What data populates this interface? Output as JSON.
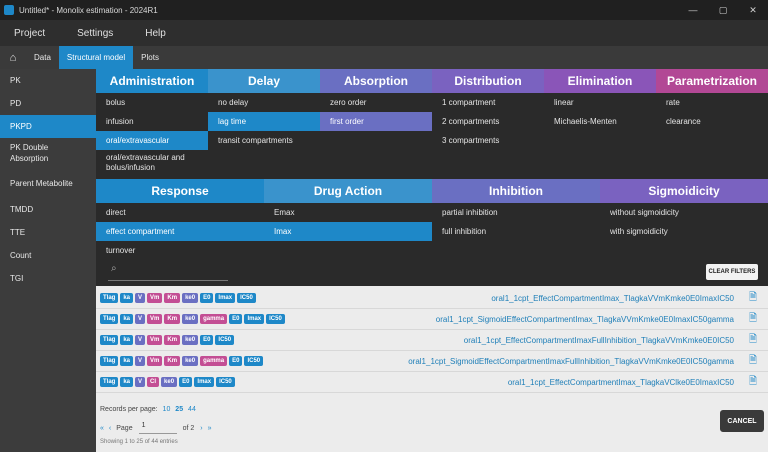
{
  "window": {
    "title": "Untitled* - Monolix estimation - 2024R1",
    "controls": [
      "—",
      "▢",
      "✕"
    ]
  },
  "menu": [
    "Project",
    "Settings",
    "Help"
  ],
  "tabs": [
    {
      "label": "Data",
      "active": false
    },
    {
      "label": "Structural model",
      "active": true
    },
    {
      "label": "Plots",
      "active": false
    }
  ],
  "sidebar": [
    {
      "label": "PK",
      "active": false
    },
    {
      "label": "PD",
      "active": false
    },
    {
      "label": "PKPD",
      "active": true
    },
    {
      "label": "PK Double Absorption",
      "active": false
    },
    {
      "label": "Parent Metabolite",
      "active": false
    },
    {
      "label": "TMDD",
      "active": false
    },
    {
      "label": "TTE",
      "active": false
    },
    {
      "label": "Count",
      "active": false
    },
    {
      "label": "TGI",
      "active": false
    }
  ],
  "pk_categories": [
    {
      "title": "Administration",
      "color": "#1e88c8",
      "options": [
        "bolus",
        "infusion",
        "oral/extravascular",
        "oral/extravascular and bolus/infusion"
      ],
      "selected": 2
    },
    {
      "title": "Delay",
      "color": "#3a93cc",
      "options": [
        "no delay",
        "lag time",
        "transit compartments"
      ],
      "selected": 1
    },
    {
      "title": "Absorption",
      "color": "#6a6fc2",
      "options": [
        "zero order",
        "first order"
      ],
      "selected": 1
    },
    {
      "title": "Distribution",
      "color": "#7a62c0",
      "options": [
        "1 compartment",
        "2 compartments",
        "3 compartments"
      ],
      "selected": -1
    },
    {
      "title": "Elimination",
      "color": "#8a55b8",
      "options": [
        "linear",
        "Michaelis-Menten"
      ],
      "selected": -1
    },
    {
      "title": "Parametrization",
      "color": "#b24895",
      "options": [
        "rate",
        "clearance"
      ],
      "selected": -1
    }
  ],
  "pd_categories": [
    {
      "title": "Response",
      "color": "#1e88c8",
      "options": [
        "direct",
        "effect compartment",
        "turnover"
      ],
      "selected": 1
    },
    {
      "title": "Drug Action",
      "color": "#3a93cc",
      "options": [
        "Emax",
        "Imax"
      ],
      "selected": 1
    },
    {
      "title": "Inhibition",
      "color": "#6a6fc2",
      "options": [
        "partial inhibition",
        "full inhibition"
      ],
      "selected": -1
    },
    {
      "title": "Sigmoidicity",
      "color": "#7a62c0",
      "options": [
        "without sigmoidicity",
        "with sigmoidicity"
      ],
      "selected": -1
    }
  ],
  "filter": {
    "clear_label": "CLEAR FILTERS"
  },
  "results": [
    {
      "tags": [
        "Tlag",
        "ka",
        "V",
        "Vm",
        "Km",
        "ke0",
        "E0",
        "Imax",
        "IC50"
      ],
      "model": "oral1_1cpt_EffectCompartmentImax_TlagkaVVmKmke0E0ImaxIC50"
    },
    {
      "tags": [
        "Tlag",
        "ka",
        "V",
        "Vm",
        "Km",
        "ke0",
        "gamma",
        "E0",
        "Imax",
        "IC50"
      ],
      "model": "oral1_1cpt_SigmoidEffectCompartmentImax_TlagkaVVmKmke0E0ImaxIC50gamma"
    },
    {
      "tags": [
        "Tlag",
        "ka",
        "V",
        "Vm",
        "Km",
        "ke0",
        "E0",
        "IC50"
      ],
      "model": "oral1_1cpt_EffectCompartmentImaxFullInhibition_TlagkaVVmKmke0E0IC50"
    },
    {
      "tags": [
        "Tlag",
        "ka",
        "V",
        "Vm",
        "Km",
        "ke0",
        "gamma",
        "E0",
        "IC50"
      ],
      "model": "oral1_1cpt_SigmoidEffectCompartmentImaxFullInhibition_TlagkaVVmKmke0E0IC50gamma"
    },
    {
      "tags": [
        "Tlag",
        "ka",
        "V",
        "Cl",
        "ke0",
        "E0",
        "Imax",
        "IC50"
      ],
      "model": "oral1_1cpt_EffectCompartmentImax_TlagkaVClke0E0ImaxIC50"
    }
  ],
  "tag_colors": {
    "Tlag": "blue",
    "ka": "blue",
    "V": "purple",
    "Vm": "pink",
    "Km": "pink",
    "Cl": "pink",
    "ke0": "purple",
    "gamma": "pink",
    "E0": "blue",
    "Imax": "blue",
    "IC50": "blue"
  },
  "pager": {
    "records_label": "Records per page:",
    "records_options": [
      "10",
      "25",
      "44"
    ],
    "records_current": "25",
    "page_label": "Page",
    "page_value": "1",
    "of_label": "of 2",
    "showing": "Showing 1 to 25 of 44 entries"
  },
  "cancel_label": "CANCEL"
}
